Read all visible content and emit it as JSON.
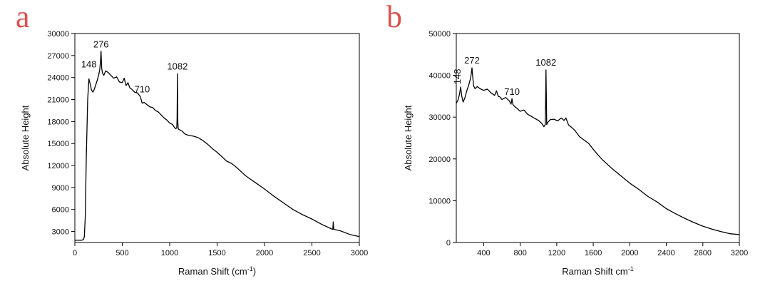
{
  "figure": {
    "background": "#ffffff",
    "panel_label_color": "#d9534f",
    "line_color": "#000000"
  },
  "chart_data": [
    {
      "type": "line",
      "panel_label": "a",
      "xlabel_main": "Raman Shift (cm",
      "xlabel_sup": "-1",
      "xlabel_close": ")",
      "ylabel": "Absolute Height",
      "xlim": [
        0,
        3000
      ],
      "ylim": [
        1500,
        30000
      ],
      "x_ticks": [
        0,
        500,
        1000,
        1500,
        2000,
        2500,
        3000
      ],
      "x_tick_labels": [
        "0",
        "500",
        "1000",
        "1500",
        "2000",
        "2500",
        "3000"
      ],
      "y_ticks": [
        3000,
        6000,
        9000,
        12000,
        15000,
        18000,
        21000,
        24000,
        27000,
        30000
      ],
      "y_tick_labels": [
        "3000",
        "6000",
        "9000",
        "12000",
        "15000",
        "18000",
        "21000",
        "24000",
        "27000",
        "30000"
      ],
      "annotations": [
        {
          "text": "148",
          "x": 148,
          "y": 24900
        },
        {
          "text": "276",
          "x": 276,
          "y": 27600
        },
        {
          "text": "710",
          "x": 710,
          "y": 21500
        },
        {
          "text": "1082",
          "x": 1082,
          "y": 24600
        }
      ],
      "series": [
        {
          "x": [
            0,
            40,
            70,
            90,
            100,
            110,
            120,
            135,
            148,
            160,
            175,
            190,
            205,
            220,
            235,
            250,
            262,
            270,
            276,
            283,
            292,
            305,
            325,
            350,
            380,
            410,
            440,
            470,
            500,
            520,
            540,
            560,
            580,
            600,
            630,
            660,
            690,
            710,
            730,
            760,
            790,
            820,
            850,
            880,
            910,
            940,
            970,
            1000,
            1030,
            1050,
            1065,
            1075,
            1078,
            1082,
            1086,
            1090,
            1100,
            1130,
            1160,
            1200,
            1250,
            1300,
            1350,
            1400,
            1450,
            1500,
            1550,
            1600,
            1650,
            1700,
            1750,
            1800,
            1900,
            2000,
            2100,
            2200,
            2300,
            2400,
            2500,
            2600,
            2700,
            2720,
            2725,
            2730,
            2800,
            2900,
            3000
          ],
          "y": [
            1800,
            1800,
            1800,
            1900,
            2300,
            5000,
            13000,
            21000,
            23800,
            23200,
            22300,
            22000,
            22400,
            23000,
            23600,
            24300,
            25000,
            26100,
            27600,
            25300,
            24600,
            24300,
            24900,
            24700,
            24300,
            23900,
            24100,
            23400,
            23300,
            23900,
            22900,
            23300,
            22600,
            22400,
            22000,
            21900,
            21400,
            20500,
            20600,
            20300,
            20000,
            19900,
            19500,
            19300,
            18900,
            18500,
            18200,
            17800,
            17600,
            17200,
            17000,
            17200,
            18500,
            24500,
            18000,
            17000,
            16900,
            16700,
            16300,
            16100,
            16000,
            15800,
            15400,
            14900,
            14300,
            13800,
            13200,
            12600,
            12300,
            11800,
            11200,
            10600,
            9700,
            8800,
            7800,
            6900,
            6000,
            5300,
            4700,
            4000,
            3400,
            3300,
            4300,
            3300,
            3100,
            2600,
            2300
          ]
        }
      ]
    },
    {
      "type": "line",
      "panel_label": "b",
      "xlabel_main": "Raman Shift cm",
      "xlabel_sup": "-1",
      "xlabel_close": "",
      "ylabel": "Absolute Height",
      "xlim": [
        100,
        3200
      ],
      "ylim": [
        0,
        50000
      ],
      "x_ticks": [
        400,
        800,
        1200,
        1600,
        2000,
        2400,
        2800,
        3200
      ],
      "x_tick_labels": [
        "400",
        "800",
        "1200",
        "1600",
        "2000",
        "2400",
        "2800",
        "3200"
      ],
      "y_ticks": [
        0,
        10000,
        20000,
        30000,
        40000,
        50000
      ],
      "y_tick_labels": [
        "0",
        "10000",
        "20000",
        "30000",
        "40000",
        "50000"
      ],
      "annotations": [
        {
          "text": "148",
          "x": 148,
          "y": 37000,
          "rotate": true
        },
        {
          "text": "272",
          "x": 272,
          "y": 42000
        },
        {
          "text": "710",
          "x": 710,
          "y": 34500
        },
        {
          "text": "1082",
          "x": 1082,
          "y": 41500
        }
      ],
      "series": [
        {
          "x": [
            100,
            120,
            135,
            148,
            160,
            175,
            195,
            215,
            235,
            255,
            265,
            272,
            280,
            290,
            305,
            330,
            360,
            400,
            440,
            480,
            520,
            540,
            560,
            580,
            600,
            640,
            680,
            700,
            710,
            720,
            740,
            760,
            800,
            840,
            880,
            920,
            960,
            1000,
            1040,
            1060,
            1075,
            1082,
            1090,
            1100,
            1130,
            1170,
            1210,
            1250,
            1280,
            1300,
            1330,
            1360,
            1400,
            1450,
            1500,
            1550,
            1600,
            1650,
            1700,
            1750,
            1800,
            1900,
            2000,
            2100,
            2200,
            2300,
            2400,
            2500,
            2600,
            2700,
            2800,
            2900,
            3000,
            3100,
            3200
          ],
          "y": [
            33300,
            34200,
            35500,
            37200,
            35000,
            33600,
            34700,
            36300,
            37600,
            39200,
            40500,
            41800,
            39500,
            37500,
            36800,
            37300,
            36800,
            36400,
            36700,
            35800,
            35200,
            36300,
            35000,
            34800,
            34200,
            34700,
            33900,
            33100,
            34400,
            33000,
            32500,
            32200,
            31400,
            31700,
            30700,
            30200,
            29700,
            29200,
            28400,
            27700,
            28300,
            41300,
            28200,
            28700,
            29400,
            29500,
            29100,
            29800,
            29200,
            29800,
            28100,
            27600,
            26800,
            25300,
            24500,
            23700,
            22300,
            21000,
            19800,
            18800,
            17800,
            16000,
            14200,
            12700,
            11000,
            9700,
            8100,
            6900,
            5800,
            4800,
            3900,
            3200,
            2600,
            2100,
            1900
          ]
        }
      ]
    }
  ]
}
